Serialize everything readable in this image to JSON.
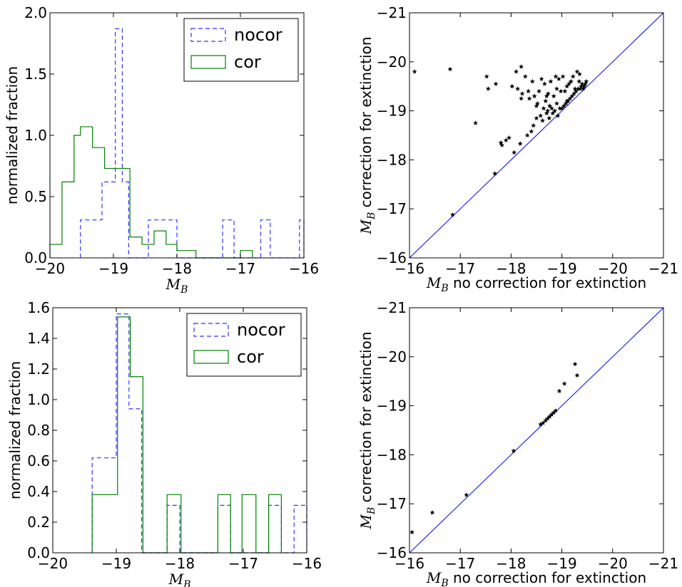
{
  "chart_data": [
    {
      "type": "histogram",
      "panel": "top-left",
      "xlabel": "M",
      "xlabel_sub": "B",
      "ylabel": "normalized fraction",
      "xlim": [
        -20,
        -16
      ],
      "ylim": [
        0,
        2.0
      ],
      "xticks": [
        -20,
        -19,
        -18,
        -17,
        -16
      ],
      "xtick_labels": [
        "−20",
        "−19",
        "−18",
        "−17",
        "−16"
      ],
      "yticks": [
        0.0,
        0.5,
        1.0,
        1.5,
        2.0
      ],
      "ytick_labels": [
        "0.0",
        "0.5",
        "1.0",
        "1.5",
        "2.0"
      ],
      "legend_position": "top-right",
      "series": [
        {
          "name": "nocor",
          "style": "dashed",
          "color": "#3333ff",
          "bin_edges": [
            -19.52,
            -19.18,
            -18.97,
            -18.86,
            -18.76,
            -18.55,
            -18.45,
            -18.0,
            -17.93,
            -17.8,
            -17.28,
            -17.1,
            -16.68,
            -16.53,
            -16.07,
            -16.0
          ],
          "values": [
            0.31,
            0.62,
            1.87,
            0.62,
            0.0,
            0.0,
            0.31,
            0.0,
            0.0,
            0.0,
            0.31,
            0.0,
            0.31,
            0.0,
            0.31
          ]
        },
        {
          "name": "cor",
          "style": "solid",
          "color": "#008000",
          "bin_edges": [
            -20.0,
            -19.81,
            -19.62,
            -19.52,
            -19.33,
            -19.14,
            -18.93,
            -18.74,
            -18.55,
            -18.36,
            -18.17,
            -18.0,
            -17.89,
            -17.7,
            -17.0,
            -16.81
          ],
          "values": [
            0.11,
            0.62,
            1.0,
            1.07,
            0.9,
            0.73,
            0.73,
            0.17,
            0.11,
            0.22,
            0.11,
            0.06,
            0.06,
            0.0,
            0.06
          ]
        }
      ]
    },
    {
      "type": "scatter",
      "panel": "top-right",
      "xlabel": "M",
      "xlabel_sub": "B",
      "xlabel_rest": "no correction for extinction",
      "ylabel": "M",
      "ylabel_sub": "B",
      "ylabel_rest": "correction for extinction",
      "xlim": [
        -16,
        -21
      ],
      "ylim": [
        -16,
        -21
      ],
      "xticks": [
        -16,
        -17,
        -18,
        -19,
        -20,
        -21
      ],
      "xtick_labels": [
        "−16",
        "−17",
        "−18",
        "−19",
        "−20",
        "−21"
      ],
      "yticks": [
        -16,
        -17,
        -18,
        -19,
        -20,
        -21
      ],
      "ytick_labels": [
        "−16",
        "−17",
        "−18",
        "−19",
        "−20",
        "−21"
      ],
      "identity_line": true,
      "line_color": "#0000ff",
      "marker_color": "#000000",
      "x": [
        -16.1,
        -16.8,
        -16.85,
        -17.3,
        -17.52,
        -17.55,
        -17.68,
        -17.7,
        -17.8,
        -17.82,
        -17.9,
        -17.96,
        -18.02,
        -18.06,
        -18.1,
        -18.13,
        -18.18,
        -18.2,
        -18.22,
        -18.28,
        -18.32,
        -18.34,
        -18.36,
        -18.4,
        -18.42,
        -18.44,
        -18.46,
        -18.5,
        -18.52,
        -18.55,
        -18.58,
        -18.6,
        -18.62,
        -18.64,
        -18.66,
        -18.68,
        -18.7,
        -18.72,
        -18.73,
        -18.75,
        -18.76,
        -18.78,
        -18.8,
        -18.82,
        -18.84,
        -18.86,
        -18.88,
        -18.9,
        -18.92,
        -18.94,
        -18.96,
        -18.98,
        -19.0,
        -19.02,
        -19.04,
        -19.06,
        -19.08,
        -19.1,
        -19.12,
        -19.14,
        -19.16,
        -19.18,
        -19.2,
        -19.22,
        -19.24,
        -19.26,
        -19.28,
        -19.3,
        -19.32,
        -19.34,
        -19.35,
        -19.36,
        -19.38,
        -19.4,
        -19.42,
        -19.44,
        -19.46,
        -19.48,
        -18.2,
        -18.5,
        -18.7,
        -18.9,
        -19.1
      ],
      "y": [
        -19.8,
        -19.85,
        -16.88,
        -18.75,
        -19.7,
        -19.45,
        -17.72,
        -19.55,
        -18.35,
        -18.3,
        -18.4,
        -18.45,
        -19.5,
        -18.15,
        -19.8,
        -19.45,
        -18.33,
        -19.9,
        -19.35,
        -19.7,
        -18.5,
        -19.4,
        -19.25,
        -18.58,
        -19.6,
        -18.7,
        -19.3,
        -18.85,
        -19.15,
        -19.4,
        -18.9,
        -19.65,
        -18.8,
        -19.05,
        -19.55,
        -19.2,
        -18.95,
        -19.0,
        -19.35,
        -18.85,
        -19.1,
        -19.6,
        -19.05,
        -18.95,
        -19.3,
        -19.0,
        -19.7,
        -19.15,
        -18.9,
        -19.65,
        -19.05,
        -19.4,
        -19.05,
        -19.7,
        -19.1,
        -19.4,
        -19.15,
        -19.5,
        -19.2,
        -19.55,
        -19.25,
        -19.6,
        -19.3,
        -19.7,
        -19.35,
        -19.45,
        -19.4,
        -19.8,
        -19.45,
        -19.6,
        -19.75,
        -19.45,
        -19.5,
        -19.55,
        -19.45,
        -19.5,
        -19.55,
        -19.6,
        -19.25,
        -19.1,
        -19.3,
        -19.45,
        -19.2
      ]
    },
    {
      "type": "histogram",
      "panel": "bottom-left",
      "xlabel": "M",
      "xlabel_sub": "B",
      "ylabel": "normalized fraction",
      "xlim": [
        -20,
        -16
      ],
      "ylim": [
        0,
        1.6
      ],
      "xticks": [
        -20,
        -19,
        -18,
        -17,
        -16
      ],
      "xtick_labels": [
        "−20",
        "−19",
        "−18",
        "−17",
        "−16"
      ],
      "yticks": [
        0.0,
        0.2,
        0.4,
        0.6,
        0.8,
        1.0,
        1.2,
        1.4,
        1.6
      ],
      "ytick_labels": [
        "0.0",
        "0.2",
        "0.4",
        "0.6",
        "0.8",
        "1.0",
        "1.2",
        "1.4",
        "1.6"
      ],
      "legend_position": "top-right",
      "series": [
        {
          "name": "nocor",
          "style": "dashed",
          "color": "#3333ff",
          "bin_edges": [
            -19.38,
            -19.0,
            -18.8,
            -18.6,
            -18.2,
            -18.0,
            -17.4,
            -17.2,
            -16.6,
            -16.4,
            -16.2,
            -16.0
          ],
          "values": [
            0.62,
            1.56,
            0.94,
            0.0,
            0.31,
            0.0,
            0.31,
            0.0,
            0.31,
            0.0,
            0.31
          ]
        },
        {
          "name": "cor",
          "style": "solid",
          "color": "#008000",
          "bin_edges": [
            -19.38,
            -18.98,
            -18.78,
            -18.58,
            -18.2,
            -17.98,
            -17.4,
            -17.2,
            -17.02,
            -16.8,
            -16.6,
            -16.4
          ],
          "values": [
            0.38,
            1.54,
            1.15,
            0.0,
            0.38,
            0.0,
            0.38,
            0.0,
            0.38,
            0.0,
            0.38
          ]
        }
      ]
    },
    {
      "type": "scatter",
      "panel": "bottom-right",
      "xlabel": "M",
      "xlabel_sub": "B",
      "xlabel_rest": "no correction for extinction",
      "ylabel": "M",
      "ylabel_sub": "B",
      "ylabel_rest": "correction for extinction",
      "xlim": [
        -16,
        -21
      ],
      "ylim": [
        -16,
        -21
      ],
      "xticks": [
        -16,
        -17,
        -18,
        -19,
        -20,
        -21
      ],
      "xtick_labels": [
        "−16",
        "−17",
        "−18",
        "−19",
        "−20",
        "−21"
      ],
      "yticks": [
        -16,
        -17,
        -18,
        -19,
        -20,
        -21
      ],
      "ytick_labels": [
        "−16",
        "−17",
        "−18",
        "−19",
        "−20",
        "−21"
      ],
      "identity_line": true,
      "line_color": "#0000ff",
      "marker_color": "#000000",
      "x": [
        -16.05,
        -16.45,
        -17.12,
        -18.05,
        -18.58,
        -18.63,
        -18.68,
        -18.72,
        -18.76,
        -18.8,
        -18.84,
        -18.88,
        -18.95,
        -19.05,
        -19.26,
        -19.3
      ],
      "y": [
        -16.42,
        -16.82,
        -17.18,
        -18.08,
        -18.62,
        -18.65,
        -18.7,
        -18.74,
        -18.78,
        -18.82,
        -18.86,
        -18.9,
        -19.3,
        -19.45,
        -19.85,
        -19.62
      ]
    }
  ]
}
